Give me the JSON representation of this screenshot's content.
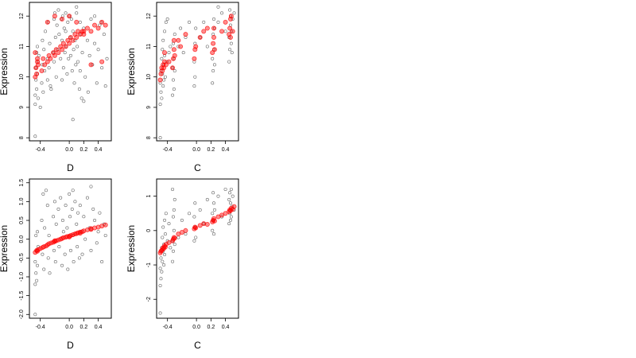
{
  "chart_data": [
    {
      "type": "scatter",
      "panel": "top-left",
      "xlabel": "D",
      "ylabel": "Expression",
      "xlim": [
        -0.55,
        0.58
      ],
      "ylim": [
        7.9,
        12.45
      ],
      "xticks": [
        -0.4,
        0.0,
        0.2,
        0.4
      ],
      "xtick_labels": [
        "-0.4",
        "0.0",
        "0.2",
        "0.4"
      ],
      "yticks": [
        8,
        9,
        10,
        11,
        12
      ],
      "ytick_labels": [
        "8",
        "9",
        "10",
        "11",
        "12"
      ],
      "series": [
        {
          "color": "#000000",
          "x": [
            -0.47,
            -0.47,
            -0.47,
            -0.46,
            -0.46,
            -0.45,
            -0.45,
            -0.44,
            -0.44,
            -0.43,
            -0.43,
            -0.42,
            -0.38,
            -0.37,
            -0.37,
            -0.36,
            -0.35,
            -0.34,
            -0.33,
            -0.3,
            -0.3,
            -0.29,
            -0.28,
            -0.27,
            -0.26,
            -0.22,
            -0.21,
            -0.21,
            -0.2,
            -0.19,
            -0.18,
            -0.17,
            -0.16,
            -0.15,
            -0.14,
            -0.12,
            -0.11,
            -0.1,
            -0.1,
            -0.09,
            -0.08,
            -0.07,
            -0.06,
            -0.05,
            -0.04,
            -0.03,
            -0.02,
            -0.01,
            0.0,
            0.01,
            0.02,
            0.03,
            0.04,
            0.05,
            0.06,
            0.07,
            0.08,
            0.09,
            0.1,
            0.11,
            0.12,
            0.14,
            0.15,
            0.15,
            0.16,
            0.17,
            0.18,
            0.2,
            0.22,
            0.25,
            0.26,
            0.28,
            0.3,
            0.32,
            0.35,
            0.38,
            0.4,
            0.42,
            0.45,
            0.48,
            0.5,
            0.52,
            0.2,
            0.05,
            -0.25,
            0.35,
            -0.05,
            0.1,
            -0.4,
            0.44
          ],
          "y": [
            8.05,
            9.1,
            9.4,
            9.9,
            10.3,
            10.8,
            9.6,
            10.1,
            11.0,
            10.5,
            9.3,
            10.7,
            9.8,
            10.4,
            11.2,
            9.5,
            10.9,
            10.2,
            11.5,
            10.6,
            9.9,
            11.8,
            10.3,
            11.1,
            9.7,
            10.8,
            11.9,
            10.5,
            12.1,
            11.3,
            10.0,
            11.7,
            10.9,
            12.2,
            11.4,
            10.6,
            11.9,
            9.9,
            11.2,
            12.0,
            10.3,
            11.6,
            10.8,
            12.1,
            11.0,
            10.1,
            11.8,
            10.6,
            12.0,
            11.3,
            10.7,
            11.9,
            10.2,
            11.5,
            10.9,
            9.8,
            11.2,
            10.4,
            12.1,
            11.0,
            10.5,
            9.6,
            11.8,
            10.2,
            11.4,
            9.3,
            10.8,
            11.6,
            10.0,
            11.2,
            9.5,
            10.7,
            11.9,
            10.4,
            11.1,
            9.8,
            10.9,
            11.7,
            10.3,
            11.4,
            9.7,
            10.6,
            9.2,
            8.6,
            9.6,
            12.0,
            11.5,
            12.3,
            9.0,
            11.8
          ]
        },
        {
          "color": "#ff0000",
          "x": [
            -0.47,
            -0.46,
            -0.45,
            -0.44,
            -0.43,
            -0.38,
            -0.36,
            -0.34,
            -0.3,
            -0.28,
            -0.26,
            -0.22,
            -0.2,
            -0.18,
            -0.15,
            -0.12,
            -0.1,
            -0.08,
            -0.05,
            -0.02,
            0.0,
            0.02,
            0.05,
            0.08,
            0.1,
            0.12,
            0.15,
            0.18,
            0.2,
            0.25,
            0.3,
            0.35,
            0.4,
            0.45,
            0.5,
            -0.47,
            -0.44,
            -0.3,
            -0.2,
            -0.1,
            0.0,
            0.1,
            0.2,
            0.3,
            0.45
          ],
          "y": [
            10.0,
            10.3,
            10.1,
            10.5,
            10.4,
            10.2,
            10.6,
            10.4,
            10.5,
            10.7,
            10.6,
            10.8,
            10.7,
            10.9,
            10.8,
            11.0,
            10.9,
            11.1,
            11.0,
            11.2,
            11.1,
            11.3,
            11.2,
            11.4,
            11.3,
            11.5,
            11.4,
            11.5,
            11.4,
            11.6,
            11.5,
            11.7,
            11.6,
            11.8,
            11.7,
            10.8,
            10.6,
            11.8,
            12.0,
            11.9,
            12.0,
            11.8,
            11.5,
            10.4,
            10.5
          ]
        }
      ]
    },
    {
      "type": "scatter",
      "panel": "top-right",
      "xlabel": "C",
      "ylabel": "Expression",
      "xlim": [
        -0.55,
        0.58
      ],
      "ylim": [
        7.9,
        12.45
      ],
      "xticks": [
        -0.4,
        0.0,
        0.2,
        0.4
      ],
      "xtick_labels": [
        "-0.4",
        "0.0",
        "0.2",
        "0.4"
      ],
      "yticks": [
        8,
        9,
        10,
        11,
        12
      ],
      "ytick_labels": [
        "8",
        "9",
        "10",
        "11",
        "12"
      ],
      "series": [
        {
          "color": "#000000",
          "x": [
            -0.5,
            -0.5,
            -0.49,
            -0.49,
            -0.48,
            -0.48,
            -0.47,
            -0.47,
            -0.46,
            -0.46,
            -0.45,
            -0.45,
            -0.44,
            -0.44,
            -0.43,
            -0.42,
            -0.41,
            -0.4,
            -0.38,
            -0.36,
            -0.33,
            -0.33,
            -0.32,
            -0.32,
            -0.31,
            -0.31,
            -0.3,
            -0.3,
            -0.25,
            -0.22,
            -0.18,
            -0.15,
            -0.1,
            -0.03,
            -0.03,
            -0.02,
            -0.02,
            -0.01,
            0.05,
            0.1,
            0.15,
            0.22,
            0.22,
            0.23,
            0.23,
            0.24,
            0.24,
            0.25,
            0.25,
            0.3,
            0.35,
            0.4,
            0.45,
            0.45,
            0.46,
            0.46,
            0.47,
            0.47,
            0.48,
            0.48,
            0.49,
            0.5,
            0.52,
            -0.5,
            0.3
          ],
          "y": [
            9.1,
            9.8,
            10.2,
            9.5,
            10.6,
            9.3,
            10.9,
            10.1,
            9.7,
            11.2,
            10.4,
            9.9,
            11.5,
            10.7,
            10.0,
            11.8,
            10.5,
            11.9,
            10.8,
            11.0,
            9.4,
            10.3,
            9.9,
            11.1,
            10.6,
            9.6,
            11.4,
            10.2,
            11.0,
            11.6,
            10.8,
            11.3,
            11.8,
            9.7,
            10.5,
            11.1,
            10.0,
            11.6,
            11.3,
            11.8,
            11.0,
            9.8,
            10.6,
            11.4,
            10.2,
            11.9,
            10.9,
            11.6,
            10.4,
            11.8,
            12.1,
            11.5,
            10.5,
            11.3,
            12.2,
            10.9,
            11.7,
            12.0,
            11.1,
            11.5,
            10.8,
            11.9,
            12.1,
            8.0,
            12.3
          ]
        },
        {
          "color": "#ff0000",
          "x": [
            -0.5,
            -0.49,
            -0.48,
            -0.47,
            -0.46,
            -0.45,
            -0.44,
            -0.42,
            -0.38,
            -0.33,
            -0.32,
            -0.31,
            -0.3,
            -0.25,
            -0.22,
            -0.15,
            -0.03,
            -0.02,
            -0.01,
            0.05,
            0.1,
            0.15,
            0.22,
            0.23,
            0.24,
            0.25,
            0.35,
            0.4,
            0.45,
            0.46,
            0.47,
            0.48,
            0.5,
            -0.44,
            -0.31,
            0.24,
            0.47
          ],
          "y": [
            9.9,
            10.1,
            10.3,
            10.2,
            10.4,
            10.3,
            10.5,
            10.4,
            10.5,
            10.3,
            10.6,
            10.9,
            10.7,
            11.2,
            11.0,
            11.4,
            10.6,
            10.9,
            11.0,
            11.3,
            11.5,
            11.6,
            10.8,
            11.1,
            11.3,
            10.9,
            11.5,
            11.8,
            11.4,
            11.6,
            11.9,
            12.0,
            11.5,
            10.8,
            11.2,
            11.6,
            11.3
          ]
        }
      ]
    },
    {
      "type": "scatter",
      "panel": "bottom-left",
      "xlabel": "D",
      "ylabel": "Expression",
      "xlim": [
        -0.55,
        0.58
      ],
      "ylim": [
        -2.1,
        1.6
      ],
      "xticks": [
        -0.4,
        0.0,
        0.2,
        0.4
      ],
      "xtick_labels": [
        "-0.4",
        "0.0",
        "0.2",
        "0.4"
      ],
      "yticks": [
        -2.0,
        -1.5,
        -1.0,
        -0.5,
        0.0,
        0.5,
        1.0,
        1.5
      ],
      "ytick_labels": [
        "-2.0",
        "-1.5",
        "-1.0",
        "-0.5",
        "0.0",
        "0.5",
        "1.0",
        "1.5"
      ],
      "series": [
        {
          "color": "#000000",
          "x": [
            -0.47,
            -0.47,
            -0.46,
            -0.46,
            -0.45,
            -0.45,
            -0.44,
            -0.44,
            -0.43,
            -0.38,
            -0.37,
            -0.36,
            -0.35,
            -0.34,
            -0.3,
            -0.29,
            -0.28,
            -0.27,
            -0.22,
            -0.21,
            -0.2,
            -0.19,
            -0.18,
            -0.15,
            -0.14,
            -0.12,
            -0.1,
            -0.09,
            -0.08,
            -0.06,
            -0.05,
            -0.03,
            -0.02,
            0.0,
            0.01,
            0.02,
            0.04,
            0.05,
            0.06,
            0.08,
            0.1,
            0.11,
            0.12,
            0.14,
            0.15,
            0.16,
            0.18,
            0.2,
            0.22,
            0.25,
            0.28,
            0.3,
            0.33,
            0.35,
            0.38,
            0.4,
            0.42,
            0.45,
            0.48,
            0.5,
            -0.47,
            0.3,
            -0.32,
            0.05
          ],
          "y": [
            -1.2,
            -0.6,
            -0.9,
            0.1,
            -0.3,
            -1.1,
            0.2,
            -0.7,
            -0.2,
            0.5,
            -0.4,
            1.2,
            -0.8,
            0.3,
            0.9,
            -0.5,
            0.1,
            -0.9,
            0.6,
            -0.3,
            1.0,
            -0.6,
            0.4,
            0.8,
            -0.2,
            1.1,
            -0.7,
            0.5,
            0.2,
            -0.4,
            0.9,
            0.3,
            -0.8,
            1.2,
            0.6,
            -0.3,
            0.8,
            0.1,
            -0.6,
            1.0,
            0.4,
            -0.2,
            0.7,
            -0.5,
            0.9,
            0.2,
            -0.4,
            0.6,
            0.0,
            1.1,
            0.3,
            -0.3,
            0.8,
            0.5,
            -0.1,
            0.2,
            0.7,
            -0.6,
            0.4,
            0.1,
            -2.0,
            1.4,
            1.3,
            1.3
          ]
        },
        {
          "color": "#ff0000",
          "x": [
            -0.47,
            -0.45,
            -0.43,
            -0.4,
            -0.37,
            -0.35,
            -0.32,
            -0.3,
            -0.28,
            -0.25,
            -0.22,
            -0.2,
            -0.18,
            -0.15,
            -0.12,
            -0.1,
            -0.08,
            -0.05,
            -0.03,
            0.0,
            0.02,
            0.05,
            0.08,
            0.1,
            0.12,
            0.15,
            0.18,
            0.2,
            0.25,
            0.3,
            0.35,
            0.4,
            0.45,
            0.5,
            -0.44,
            -0.2,
            0.0,
            0.15,
            0.3
          ],
          "y": [
            -0.35,
            -0.3,
            -0.28,
            -0.25,
            -0.22,
            -0.2,
            -0.18,
            -0.15,
            -0.12,
            -0.1,
            -0.08,
            -0.06,
            -0.04,
            -0.02,
            0.0,
            0.02,
            0.04,
            0.05,
            0.07,
            0.08,
            0.1,
            0.12,
            0.14,
            0.15,
            0.17,
            0.19,
            0.2,
            0.22,
            0.25,
            0.28,
            0.3,
            0.32,
            0.35,
            0.38,
            -0.32,
            -0.04,
            0.06,
            0.16,
            0.26
          ]
        }
      ]
    },
    {
      "type": "scatter",
      "panel": "bottom-right",
      "xlabel": "C",
      "ylabel": "Expression",
      "xlim": [
        -0.55,
        0.58
      ],
      "ylim": [
        -2.55,
        1.5
      ],
      "xticks": [
        -0.4,
        0.0,
        0.2,
        0.4
      ],
      "xtick_labels": [
        "-0.4",
        "0.0",
        "0.2",
        "0.4"
      ],
      "yticks": [
        -2,
        -1,
        0,
        1
      ],
      "ytick_labels": [
        "-2",
        "-1",
        "0",
        "1"
      ],
      "series": [
        {
          "color": "#000000",
          "x": [
            -0.5,
            -0.5,
            -0.49,
            -0.49,
            -0.48,
            -0.48,
            -0.47,
            -0.47,
            -0.46,
            -0.46,
            -0.45,
            -0.45,
            -0.44,
            -0.44,
            -0.43,
            -0.42,
            -0.4,
            -0.38,
            -0.36,
            -0.33,
            -0.33,
            -0.32,
            -0.32,
            -0.31,
            -0.31,
            -0.3,
            -0.3,
            -0.25,
            -0.2,
            -0.15,
            -0.1,
            -0.03,
            -0.03,
            -0.02,
            -0.02,
            -0.01,
            0.05,
            0.1,
            0.15,
            0.22,
            0.22,
            0.23,
            0.23,
            0.24,
            0.24,
            0.25,
            0.3,
            0.35,
            0.4,
            0.45,
            0.45,
            0.46,
            0.46,
            0.47,
            0.47,
            0.48,
            0.48,
            0.49,
            0.5,
            0.52,
            -0.5,
            -0.33
          ],
          "y": [
            -1.6,
            -1.1,
            -0.8,
            -1.4,
            -0.5,
            -1.2,
            -0.2,
            -0.9,
            -0.6,
            0.1,
            -1.0,
            -0.4,
            0.3,
            -0.7,
            -0.1,
            0.5,
            -0.3,
            0.2,
            -0.5,
            -0.9,
            -0.3,
            0.4,
            -0.6,
            0.0,
            0.6,
            -0.4,
            0.9,
            -0.2,
            0.3,
            -0.1,
            0.5,
            -0.3,
            0.4,
            0.1,
            0.8,
            -0.2,
            0.6,
            0.2,
            0.9,
            0.0,
            0.5,
            1.1,
            0.3,
            0.8,
            -0.1,
            0.6,
            1.0,
            0.4,
            1.2,
            0.2,
            0.9,
            0.5,
            1.1,
            0.3,
            0.8,
            1.2,
            0.4,
            0.7,
            1.0,
            0.6,
            -2.4,
            1.2
          ]
        },
        {
          "color": "#ff0000",
          "x": [
            -0.5,
            -0.49,
            -0.48,
            -0.47,
            -0.46,
            -0.45,
            -0.44,
            -0.43,
            -0.42,
            -0.38,
            -0.33,
            -0.32,
            -0.31,
            -0.3,
            -0.25,
            -0.2,
            -0.15,
            -0.03,
            -0.02,
            -0.01,
            0.05,
            0.1,
            0.15,
            0.22,
            0.23,
            0.24,
            0.25,
            0.3,
            0.35,
            0.4,
            0.45,
            0.46,
            0.47,
            0.48,
            0.5,
            0.52
          ],
          "y": [
            -0.65,
            -0.6,
            -0.58,
            -0.55,
            -0.5,
            -0.52,
            -0.45,
            -0.48,
            -0.4,
            -0.35,
            -0.3,
            -0.25,
            -0.2,
            -0.22,
            -0.1,
            -0.05,
            0.0,
            0.05,
            0.1,
            0.08,
            0.15,
            0.2,
            0.18,
            0.25,
            0.3,
            0.35,
            0.28,
            0.4,
            0.45,
            0.5,
            0.55,
            0.6,
            0.58,
            0.65,
            0.62,
            0.7
          ]
        }
      ]
    }
  ]
}
